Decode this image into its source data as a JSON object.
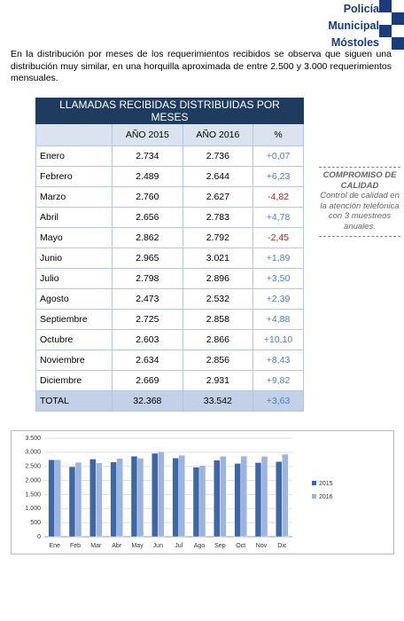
{
  "header": {
    "lines": [
      "Policía",
      "Municipal",
      "Móstoles"
    ]
  },
  "intro": "En la distribución por meses de los requerimientos recibidos se observa que siguen una distribución muy similar, en una horquilla aproximada de entre 2.500 y 3.000 requerimientos mensuales.",
  "table": {
    "title": "LLAMADAS RECIBIDAS DISTRIBUIDAS POR MESES",
    "columns": [
      "AÑO 2015",
      "AÑO 2016",
      "%"
    ],
    "rows": [
      [
        "Enero",
        "2.734",
        "2.736",
        "+0,07"
      ],
      [
        "Febrero",
        "2.489",
        "2.644",
        "+6,23"
      ],
      [
        "Marzo",
        "2.760",
        "2.627",
        "-4,82"
      ],
      [
        "Abril",
        "2.656",
        "2.783",
        "+4,78"
      ],
      [
        "Mayo",
        "2.862",
        "2.792",
        "-2,45"
      ],
      [
        "Junio",
        "2.965",
        "3.021",
        "+1,89"
      ],
      [
        "Julio",
        "2.798",
        "2.896",
        "+3,50"
      ],
      [
        "Agosto",
        "2.473",
        "2.532",
        "+2,39"
      ],
      [
        "Septiembre",
        "2.725",
        "2.858",
        "+4,88"
      ],
      [
        "Octubre",
        "2.603",
        "2.866",
        "+10,10"
      ],
      [
        "Noviembre",
        "2.634",
        "2.856",
        "+8,43"
      ],
      [
        "Diciembre",
        "2.669",
        "2.931",
        "+9,82"
      ],
      [
        "TOTAL",
        "32.368",
        "33.542",
        "+3,63"
      ]
    ]
  },
  "sidebar": {
    "title": "COMPROMISO DE CALIDAD",
    "text": "Control de calidad en la atención telefónica con 3 muestreos anuales."
  },
  "chart_data": {
    "type": "bar",
    "categories": [
      "Ene",
      "Feb",
      "Mar",
      "Abr",
      "May",
      "Jun",
      "Jul",
      "Ago",
      "Sep",
      "Oct",
      "Nov",
      "Dic"
    ],
    "series": [
      {
        "name": "2015",
        "color": "#3d68a8",
        "values": [
          2734,
          2489,
          2760,
          2656,
          2862,
          2965,
          2798,
          2473,
          2725,
          2603,
          2634,
          2669
        ]
      },
      {
        "name": "2016",
        "color": "#9fb4dc",
        "values": [
          2736,
          2644,
          2627,
          2783,
          2792,
          3021,
          2896,
          2532,
          2858,
          2866,
          2856,
          2931
        ]
      }
    ],
    "ylim": [
      0,
      3500
    ],
    "yticks": [
      0,
      {
        "value": 500,
        "label": "500"
      },
      {
        "value": 1000,
        "label": "1.000"
      },
      {
        "value": 1500,
        "label": "1.500"
      },
      {
        "value": 2000,
        "label": "2.000"
      },
      {
        "value": 2500,
        "label": "2.500"
      },
      {
        "value": 3000,
        "label": "3.000"
      },
      {
        "value": 3500,
        "label": "3.500"
      }
    ],
    "legend": "right"
  }
}
